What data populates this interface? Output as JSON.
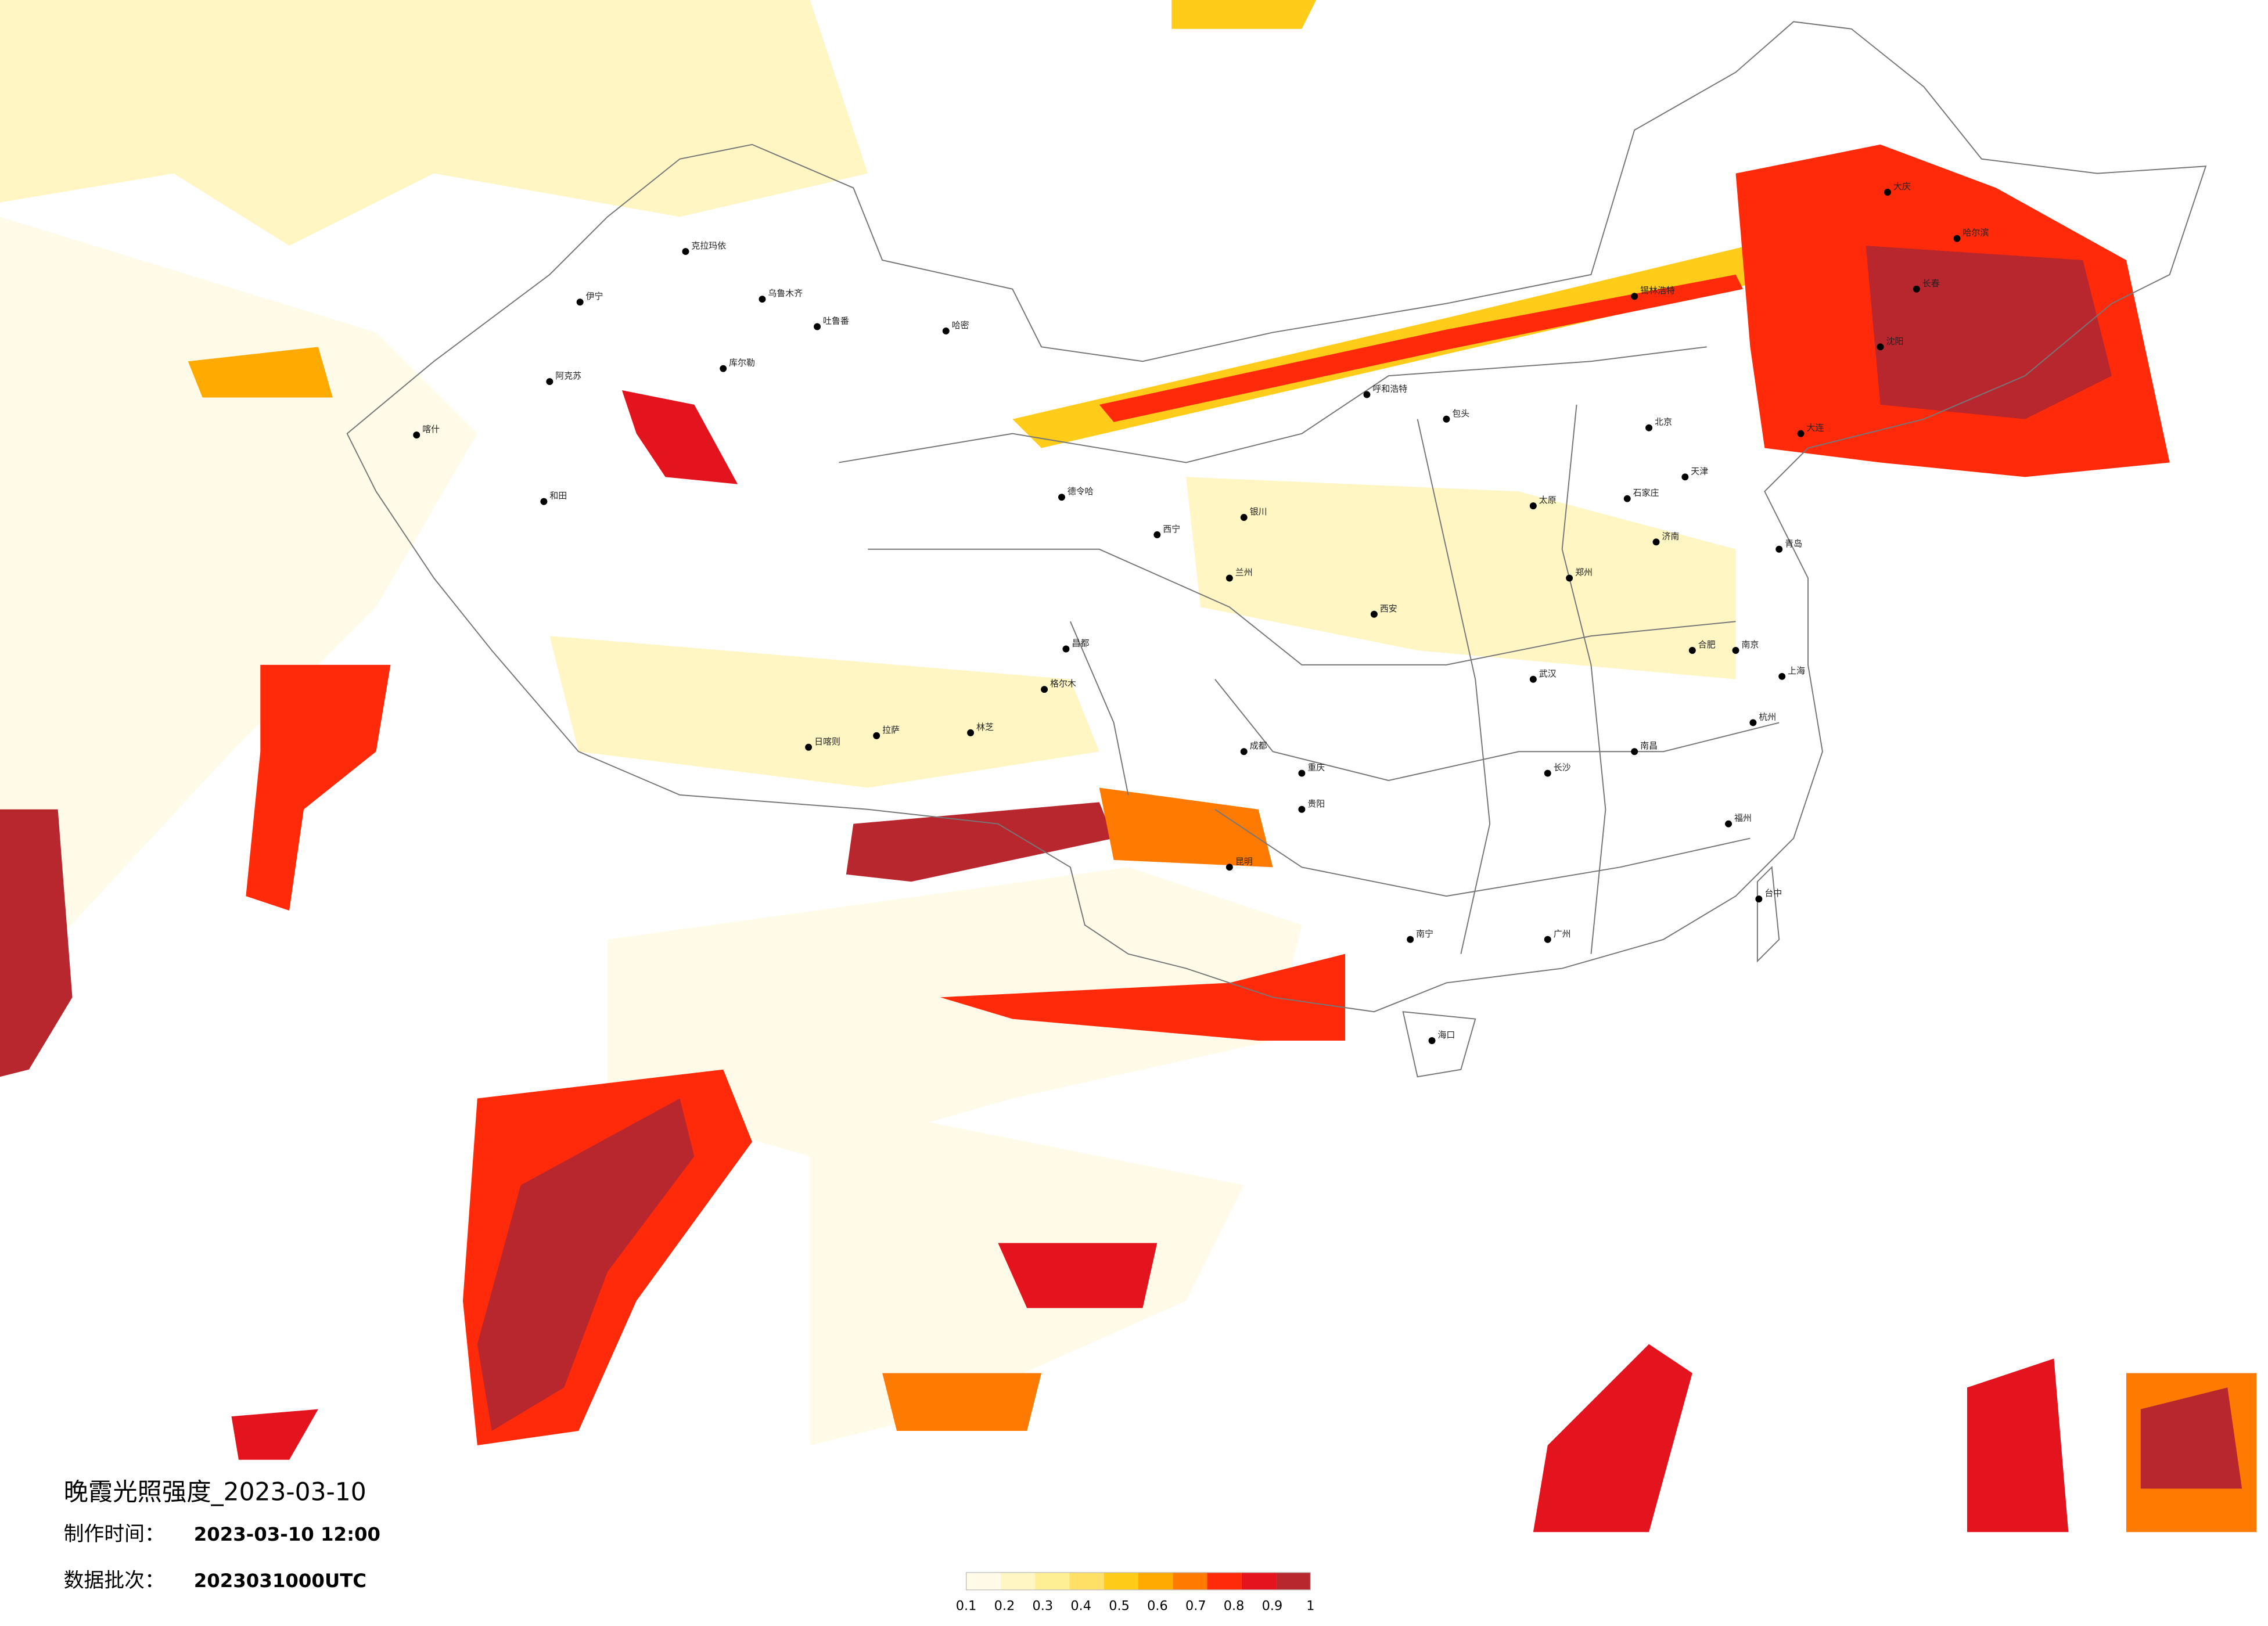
{
  "title": "晚霞光照强度_2023-03-10",
  "made_label": "制作时间：",
  "made_time": "2023-03-10 12:00",
  "batch_label": "数据批次：",
  "batch": "2023031000UTC",
  "legend": {
    "colors": [
      "#fffbe8",
      "#fff6c4",
      "#ffef94",
      "#ffe066",
      "#ffcc1a",
      "#ffaa00",
      "#ff7a00",
      "#ff2a0a",
      "#e3141e",
      "#b8262e"
    ],
    "ticks": [
      0.1,
      0.2,
      0.3,
      0.4,
      0.5,
      0.6,
      0.7,
      0.8,
      0.9,
      1
    ]
  },
  "cities": [
    "克拉玛依",
    "乌鲁木齐",
    "吐鲁番",
    "哈密",
    "库尔勒",
    "阿克苏",
    "喀什",
    "和田",
    "伊宁",
    "格尔木",
    "德令哈",
    "日喀则",
    "拉萨",
    "林芝",
    "昌都",
    "西宁",
    "兰州",
    "银川",
    "呼和浩特",
    "包头",
    "锡林浩特",
    "北京",
    "天津",
    "石家庄",
    "太原",
    "济南",
    "郑州",
    "西安",
    "武汉",
    "长沙",
    "南昌",
    "合肥",
    "南京",
    "上海",
    "杭州",
    "福州",
    "广州",
    "南宁",
    "贵阳",
    "昆明",
    "成都",
    "重庆",
    "海口",
    "台中",
    "大庆",
    "哈尔滨",
    "长春",
    "沈阳",
    "大连",
    "青岛"
  ]
}
